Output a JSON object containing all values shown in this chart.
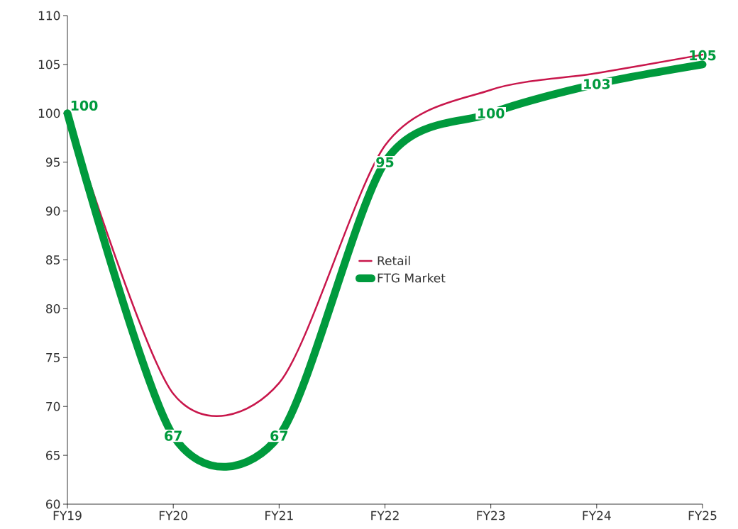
{
  "chart_data": {
    "type": "line",
    "categories": [
      "FY19",
      "FY20",
      "FY21",
      "FY22",
      "FY23",
      "FY24",
      "FY25"
    ],
    "series": [
      {
        "name": "Retail",
        "color": "#c8164b",
        "values": [
          100,
          71.3,
          72.4,
          96.7,
          102.4,
          104.1,
          106
        ]
      },
      {
        "name": "FTG Market",
        "color": "#009a3d",
        "values": [
          100,
          67,
          67,
          95,
          100,
          103,
          105
        ],
        "value_labels": [
          "100",
          "67",
          "67",
          "95",
          "100",
          "103",
          "105"
        ]
      }
    ],
    "ylim": [
      60,
      110
    ],
    "yticks": [
      60,
      65,
      70,
      75,
      80,
      85,
      90,
      95,
      100,
      105,
      110
    ],
    "legend": "center",
    "grid": false,
    "line_style": "solid"
  }
}
